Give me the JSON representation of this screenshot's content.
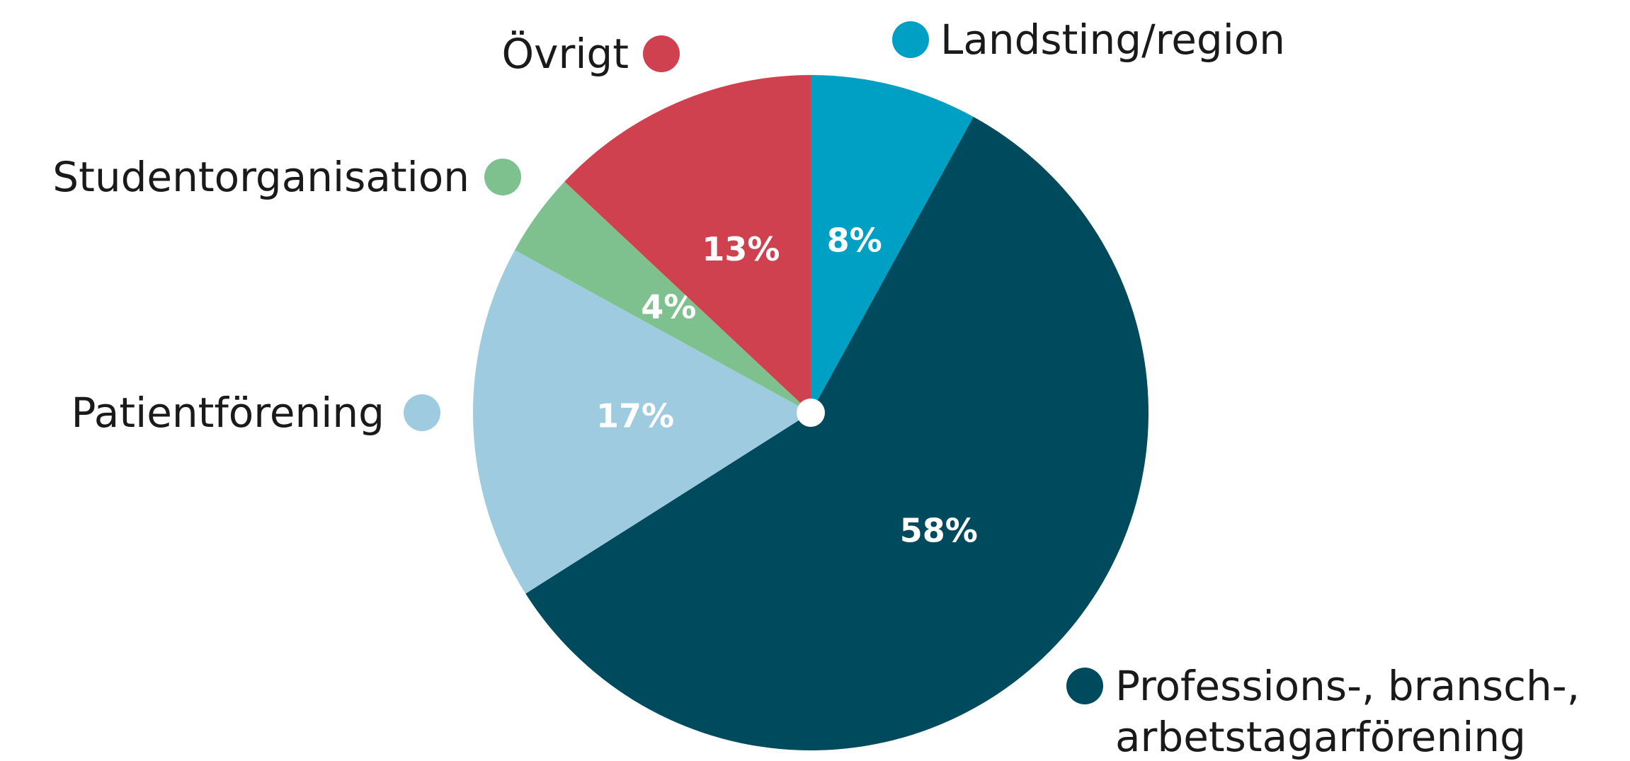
{
  "chart_data": {
    "type": "pie",
    "categories": [
      "Landsting/region",
      "Professions-, bransch-, arbetstagarförening",
      "Patientförening",
      "Studentorganisation",
      "Övrigt"
    ],
    "values": [
      8,
      58,
      17,
      4,
      13
    ],
    "value_labels": [
      "8%",
      "58%",
      "17%",
      "4%",
      "13%"
    ],
    "colors": [
      "#00a0c4",
      "#004a5e",
      "#9ecbe0",
      "#7ec18f",
      "#d0414f"
    ]
  }
}
